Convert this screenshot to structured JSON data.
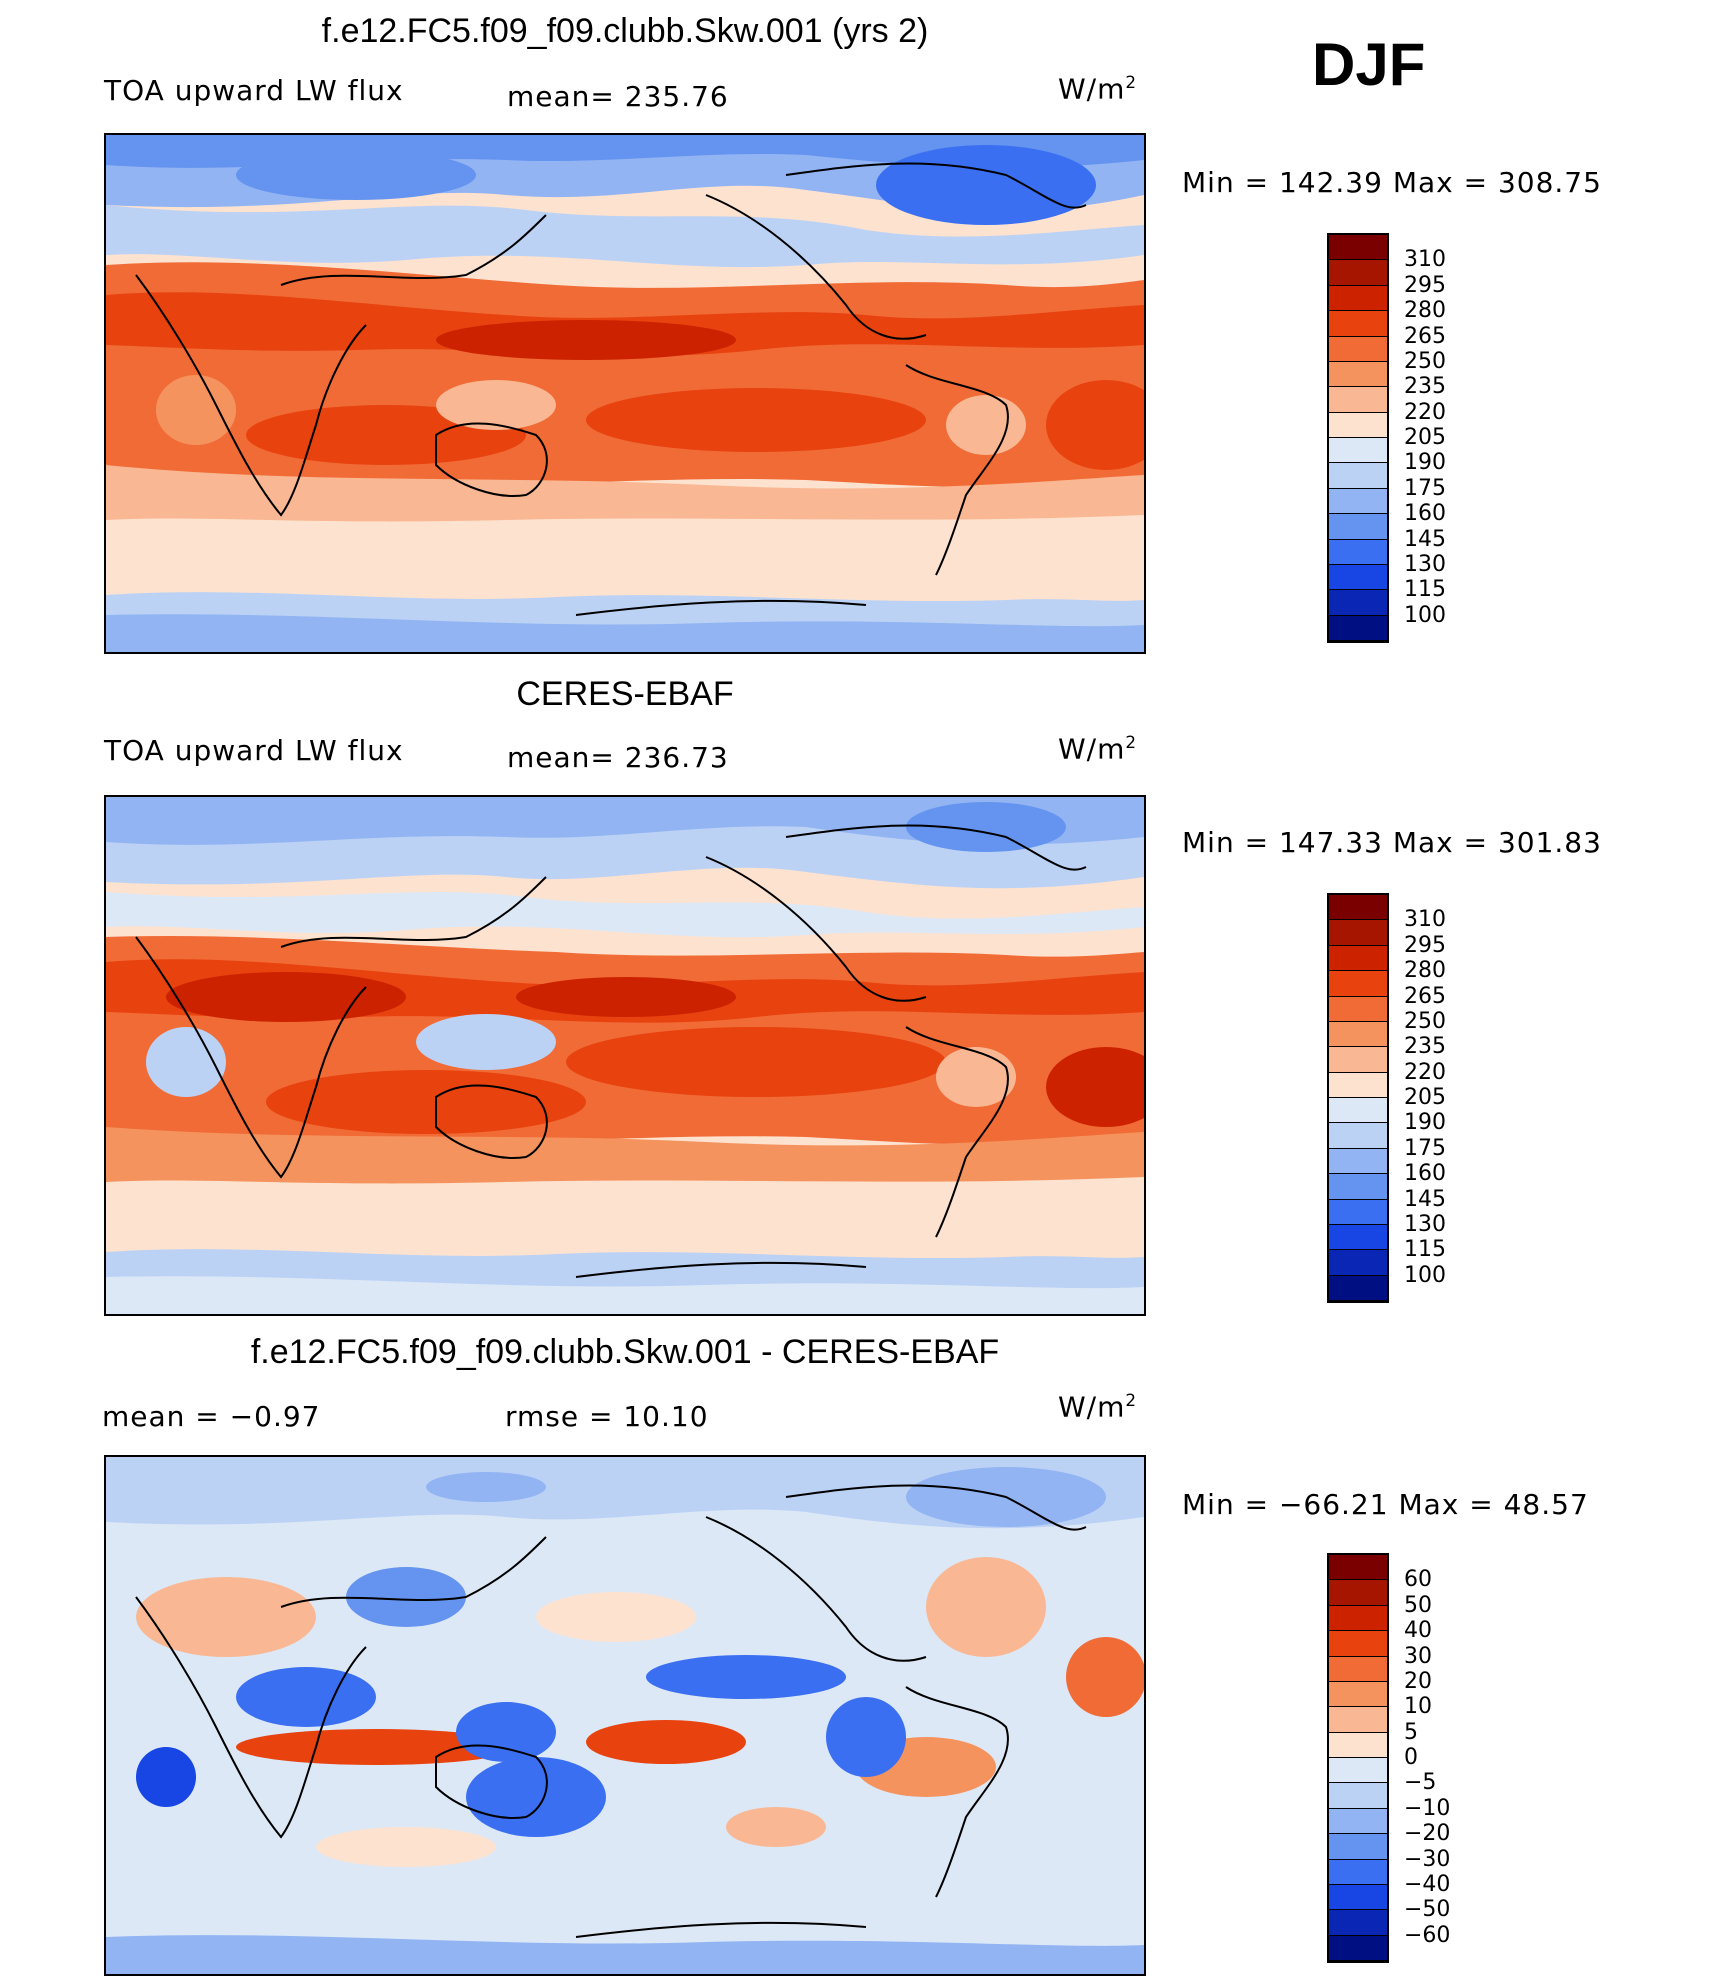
{
  "season": "DJF",
  "units_base": "W/m",
  "units_exp": "2",
  "panels": [
    {
      "title": "f.e12.FC5.f09_f09.clubb.Skw.001 (yrs 2)",
      "left_label": "TOA upward LW flux",
      "stat_label": "mean= 235.76",
      "minmax": "Min  =  142.39  Max  =  308.75",
      "kind": "abs",
      "colorbar_labels": [
        "310",
        "295",
        "280",
        "265",
        "250",
        "235",
        "220",
        "205",
        "190",
        "175",
        "160",
        "145",
        "130",
        "115",
        "100"
      ]
    },
    {
      "title": "CERES-EBAF",
      "left_label": "TOA upward LW flux",
      "stat_label": "mean= 236.73",
      "minmax": "Min  =  147.33  Max  =  301.83",
      "kind": "abs",
      "colorbar_labels": [
        "310",
        "295",
        "280",
        "265",
        "250",
        "235",
        "220",
        "205",
        "190",
        "175",
        "160",
        "145",
        "130",
        "115",
        "100"
      ]
    },
    {
      "title": "f.e12.FC5.f09_f09.clubb.Skw.001 - CERES-EBAF",
      "left_label": "mean  =    −0.97",
      "stat_label": "rmse  =    10.10",
      "minmax": "Min  =  −66.21  Max  =    48.57",
      "kind": "diff",
      "colorbar_labels": [
        "60",
        "50",
        "40",
        "30",
        "20",
        "10",
        "5",
        "0",
        "−5",
        "−10",
        "−20",
        "−30",
        "−40",
        "−50",
        "−60"
      ]
    }
  ],
  "colors": {
    "abs_scale": [
      "#7a0000",
      "#a51500",
      "#cc2200",
      "#e8420f",
      "#f16b36",
      "#f5935f",
      "#f9b893",
      "#fde2cf",
      "#dde8f7",
      "#bcd2f5",
      "#92b4f3",
      "#6494f0",
      "#3a6ff2",
      "#1746e4",
      "#0a26b4",
      "#000f82"
    ],
    "diff_scale": [
      "#7a0000",
      "#a51500",
      "#cc2200",
      "#e8420f",
      "#f16b36",
      "#f5935f",
      "#f9b893",
      "#fde2cf",
      "#dde8f7",
      "#bcd2f5",
      "#92b4f3",
      "#6494f0",
      "#3a6ff2",
      "#1746e4",
      "#0a26b4",
      "#000f82"
    ]
  }
}
